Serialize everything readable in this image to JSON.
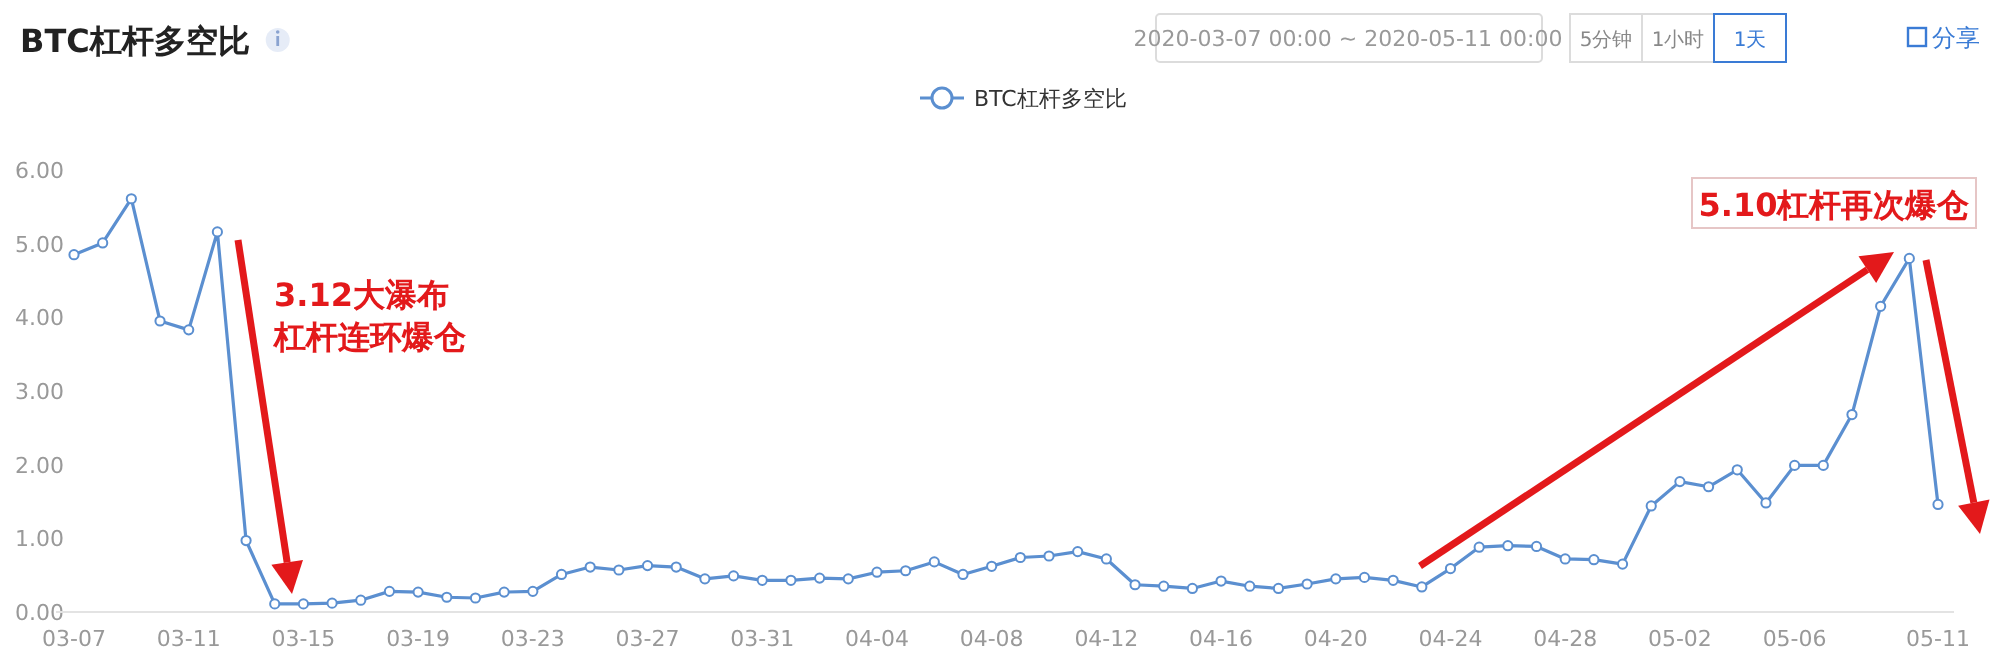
{
  "chart_data": {
    "type": "line",
    "title": "BTC杠杆多空比",
    "categories": [
      "03-07",
      null,
      null,
      null,
      "03-11",
      null,
      null,
      null,
      "03-15",
      null,
      null,
      null,
      "03-19",
      null,
      null,
      null,
      "03-23",
      null,
      null,
      null,
      "03-27",
      null,
      null,
      null,
      "03-31",
      null,
      null,
      null,
      "04-04",
      null,
      null,
      null,
      "04-08",
      null,
      null,
      null,
      "04-12",
      null,
      null,
      null,
      "04-16",
      null,
      null,
      null,
      "04-20",
      null,
      null,
      null,
      "04-24",
      null,
      null,
      null,
      "04-28",
      null,
      null,
      null,
      "05-02",
      null,
      null,
      null,
      "05-06",
      null,
      null,
      null,
      null,
      "05-11"
    ],
    "series": [
      {
        "name": "BTC杠杆多空比",
        "color": "#5b8fd0",
        "values": [
          4.85,
          5.01,
          5.61,
          3.95,
          3.83,
          5.16,
          0.97,
          0.11,
          0.11,
          0.12,
          0.16,
          0.28,
          0.27,
          0.2,
          0.19,
          0.27,
          0.28,
          0.51,
          0.61,
          0.57,
          0.63,
          0.61,
          0.45,
          0.49,
          0.43,
          0.43,
          0.46,
          0.45,
          0.54,
          0.56,
          0.68,
          0.51,
          0.62,
          0.74,
          0.76,
          0.82,
          0.72,
          0.37,
          0.35,
          0.32,
          0.42,
          0.35,
          0.32,
          0.38,
          0.45,
          0.47,
          0.43,
          0.34,
          0.59,
          0.88,
          0.9,
          0.89,
          0.72,
          0.71,
          0.65,
          1.44,
          1.77,
          1.7,
          1.93,
          1.48,
          1.99,
          1.99,
          2.68,
          4.15,
          4.8,
          1.46
        ]
      }
    ],
    "ylim": [
      0,
      6
    ],
    "yticks": [
      {
        "value": 0,
        "label": "0.00"
      },
      {
        "value": 1,
        "label": "1.00"
      },
      {
        "value": 2,
        "label": "2.00"
      },
      {
        "value": 3,
        "label": "3.00"
      },
      {
        "value": 4,
        "label": "4.00"
      },
      {
        "value": 5,
        "label": "5.00"
      },
      {
        "value": 6,
        "label": "6.00"
      }
    ],
    "grid": false,
    "legend": "top",
    "marker": "circle",
    "line_style": "solid",
    "annotations": [
      "3.12大瀑布",
      "杠杆连环爆仓",
      "5.10杠杆再次爆仓",
      "2020-03-07 00:00 ~ 2020-05-11 00:00",
      "5分钟",
      "1小时",
      "1天",
      "分享"
    ]
  }
}
